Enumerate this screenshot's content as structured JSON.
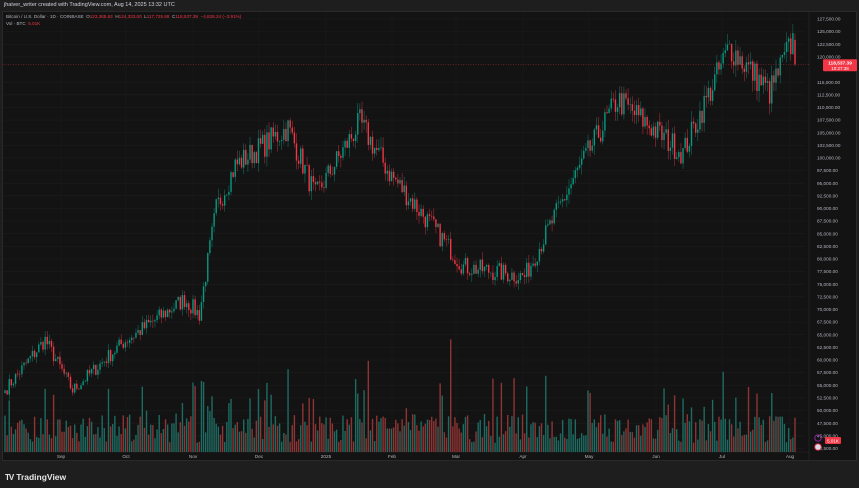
{
  "header": {
    "credit": "jhaiver_writer created with TradingView.com, Aug 14, 2025 13:32 UTC"
  },
  "legend": {
    "symbol": "Bitcoin / U.S. Dollar · 1D · COINBASE",
    "open_label": "O",
    "open": "123,365.63",
    "high_label": "H",
    "high": "124,333.00",
    "low_label": "L",
    "low": "117,725.88",
    "close_label": "C",
    "close": "118,537.39",
    "change": "−4,828.24 (−3.91%)",
    "volume_label": "Vol · BTC",
    "volume": "5.01K"
  },
  "price_tag": {
    "price": "118,537.39",
    "countdown": "10:27:38",
    "color": "#f23645"
  },
  "volume_tag": {
    "value": "5.01K",
    "color": "#f23645"
  },
  "colors": {
    "up": "#089981",
    "down": "#f23645",
    "up_vol": "#1d6b61",
    "down_vol": "#8e3434",
    "background": "#131313"
  },
  "footer": {
    "brand": "TradingView",
    "logo": "TV"
  },
  "chart_data": {
    "type": "candlestick",
    "title": "Bitcoin / U.S. Dollar · 1D · COINBASE",
    "xlabel": "",
    "ylabel": "USD",
    "y_ticks": [
      "127,500.00",
      "125,000.00",
      "122,500.00",
      "120,000.00",
      "115,000.00",
      "112,500.00",
      "110,000.00",
      "107,500.00",
      "105,000.00",
      "102,500.00",
      "100,000.00",
      "97,500.00",
      "95,000.00",
      "92,500.00",
      "90,000.00",
      "87,500.00",
      "85,000.00",
      "82,500.00",
      "80,000.00",
      "77,500.00",
      "75,000.00",
      "72,500.00",
      "70,000.00",
      "67,500.00",
      "65,000.00",
      "62,500.00",
      "60,000.00",
      "57,500.00",
      "55,000.00",
      "52,500.00",
      "50,000.00",
      "47,500.00",
      "45,000.00",
      "42,500.00"
    ],
    "x_ticks": [
      "Sep",
      "Oct",
      "Nov",
      "Dec",
      "2025",
      "Feb",
      "Mar",
      "Apr",
      "May",
      "Jun",
      "Jul",
      "Aug"
    ],
    "ylim": [
      41000,
      129500
    ],
    "last_price": 118537.39,
    "key_closes": [
      {
        "date": "2024-08-05",
        "close": 54000
      },
      {
        "date": "2024-08-24",
        "close": 64000
      },
      {
        "date": "2024-09-06",
        "close": 54000
      },
      {
        "date": "2024-09-30",
        "close": 63500
      },
      {
        "date": "2024-10-29",
        "close": 72000
      },
      {
        "date": "2024-11-05",
        "close": 69000
      },
      {
        "date": "2024-11-13",
        "close": 90000
      },
      {
        "date": "2024-11-22",
        "close": 98500
      },
      {
        "date": "2024-12-17",
        "close": 106000
      },
      {
        "date": "2024-12-30",
        "close": 92500
      },
      {
        "date": "2025-01-20",
        "close": 107000
      },
      {
        "date": "2025-02-03",
        "close": 97000
      },
      {
        "date": "2025-02-28",
        "close": 84000
      },
      {
        "date": "2025-03-10",
        "close": 78500
      },
      {
        "date": "2025-04-08",
        "close": 76500
      },
      {
        "date": "2025-05-02",
        "close": 96500
      },
      {
        "date": "2025-05-22",
        "close": 111500
      },
      {
        "date": "2025-06-22",
        "close": 101000
      },
      {
        "date": "2025-07-14",
        "close": 122000
      },
      {
        "date": "2025-08-02",
        "close": 113000
      },
      {
        "date": "2025-08-13",
        "close": 123365
      },
      {
        "date": "2025-08-14",
        "close": 118537
      }
    ],
    "volume_max_btc": 50000
  }
}
